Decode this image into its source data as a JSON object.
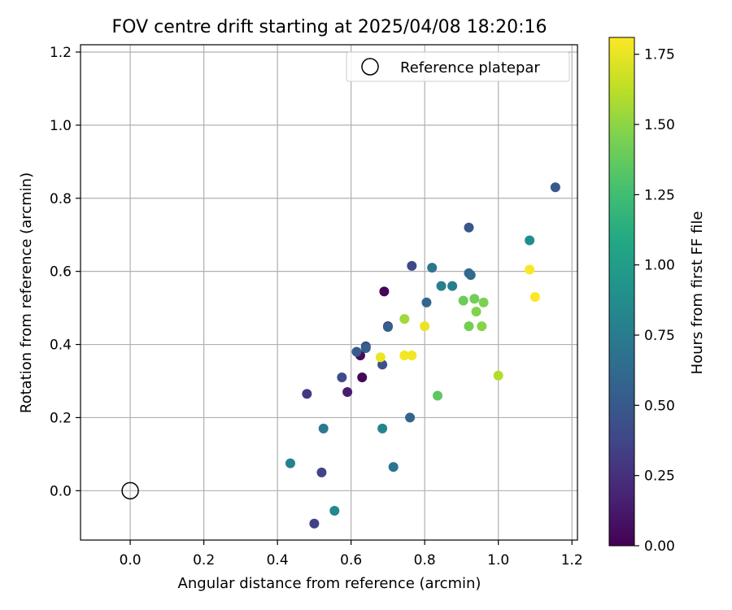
{
  "chart_data": {
    "type": "scatter",
    "title": "FOV centre drift starting at 2025/04/08 18:20:16",
    "xlabel": "Angular distance from reference (arcmin)",
    "ylabel": "Rotation from reference (arcmin)",
    "xlim": [
      -0.135,
      1.215
    ],
    "ylim": [
      -0.135,
      1.22
    ],
    "xticks": [
      "0.0",
      "0.2",
      "0.4",
      "0.6",
      "0.8",
      "1.0",
      "1.2"
    ],
    "yticks": [
      "0.0",
      "0.2",
      "0.4",
      "0.6",
      "0.8",
      "1.0",
      "1.2"
    ],
    "grid": true,
    "legend": {
      "placement": "top-right",
      "entries": [
        "Reference platepar"
      ]
    },
    "reference_point": {
      "x": 0.0,
      "y": 0.0,
      "label": "Reference platepar"
    },
    "colorbar": {
      "label": "Hours from first FF file",
      "colormap": "viridis",
      "range": [
        0.0,
        1.81
      ],
      "ticks": [
        "0.00",
        "0.25",
        "0.50",
        "0.75",
        "1.00",
        "1.25",
        "1.50",
        "1.75"
      ]
    },
    "points": [
      {
        "x": 0.69,
        "y": 0.545,
        "h": 0.02
      },
      {
        "x": 0.63,
        "y": 0.31,
        "h": 0.03
      },
      {
        "x": 0.625,
        "y": 0.37,
        "h": 0.05
      },
      {
        "x": 0.7,
        "y": 0.45,
        "h": 0.08
      },
      {
        "x": 0.59,
        "y": 0.27,
        "h": 0.15
      },
      {
        "x": 0.48,
        "y": 0.265,
        "h": 0.3
      },
      {
        "x": 0.5,
        "y": -0.09,
        "h": 0.35
      },
      {
        "x": 0.52,
        "y": 0.05,
        "h": 0.36
      },
      {
        "x": 0.64,
        "y": 0.395,
        "h": 0.38
      },
      {
        "x": 0.765,
        "y": 0.615,
        "h": 0.4
      },
      {
        "x": 0.575,
        "y": 0.31,
        "h": 0.42
      },
      {
        "x": 0.685,
        "y": 0.345,
        "h": 0.45
      },
      {
        "x": 0.92,
        "y": 0.72,
        "h": 0.48
      },
      {
        "x": 1.155,
        "y": 0.83,
        "h": 0.5
      },
      {
        "x": 0.615,
        "y": 0.38,
        "h": 0.52
      },
      {
        "x": 0.64,
        "y": 0.39,
        "h": 0.54
      },
      {
        "x": 0.7,
        "y": 0.448,
        "h": 0.55
      },
      {
        "x": 0.76,
        "y": 0.2,
        "h": 0.58
      },
      {
        "x": 0.805,
        "y": 0.515,
        "h": 0.6
      },
      {
        "x": 0.92,
        "y": 0.595,
        "h": 0.62
      },
      {
        "x": 0.925,
        "y": 0.59,
        "h": 0.63
      },
      {
        "x": 0.715,
        "y": 0.065,
        "h": 0.7
      },
      {
        "x": 0.82,
        "y": 0.61,
        "h": 0.72
      },
      {
        "x": 0.525,
        "y": 0.17,
        "h": 0.74
      },
      {
        "x": 0.875,
        "y": 0.56,
        "h": 0.76
      },
      {
        "x": 0.845,
        "y": 0.56,
        "h": 0.78
      },
      {
        "x": 0.435,
        "y": 0.075,
        "h": 0.8
      },
      {
        "x": 0.685,
        "y": 0.17,
        "h": 0.82
      },
      {
        "x": 0.555,
        "y": -0.055,
        "h": 0.84
      },
      {
        "x": 1.085,
        "y": 0.685,
        "h": 0.88
      },
      {
        "x": 0.835,
        "y": 0.26,
        "h": 1.35
      },
      {
        "x": 0.905,
        "y": 0.52,
        "h": 1.4
      },
      {
        "x": 0.92,
        "y": 0.45,
        "h": 1.42
      },
      {
        "x": 0.935,
        "y": 0.525,
        "h": 1.42
      },
      {
        "x": 0.96,
        "y": 0.515,
        "h": 1.45
      },
      {
        "x": 0.94,
        "y": 0.49,
        "h": 1.47
      },
      {
        "x": 0.955,
        "y": 0.45,
        "h": 1.48
      },
      {
        "x": 0.745,
        "y": 0.47,
        "h": 1.55
      },
      {
        "x": 1.0,
        "y": 0.315,
        "h": 1.6
      },
      {
        "x": 0.8,
        "y": 0.45,
        "h": 1.75
      },
      {
        "x": 0.68,
        "y": 0.365,
        "h": 1.76
      },
      {
        "x": 0.745,
        "y": 0.37,
        "h": 1.78
      },
      {
        "x": 0.765,
        "y": 0.37,
        "h": 1.78
      },
      {
        "x": 1.085,
        "y": 0.605,
        "h": 1.8
      },
      {
        "x": 1.1,
        "y": 0.53,
        "h": 1.81
      }
    ]
  }
}
